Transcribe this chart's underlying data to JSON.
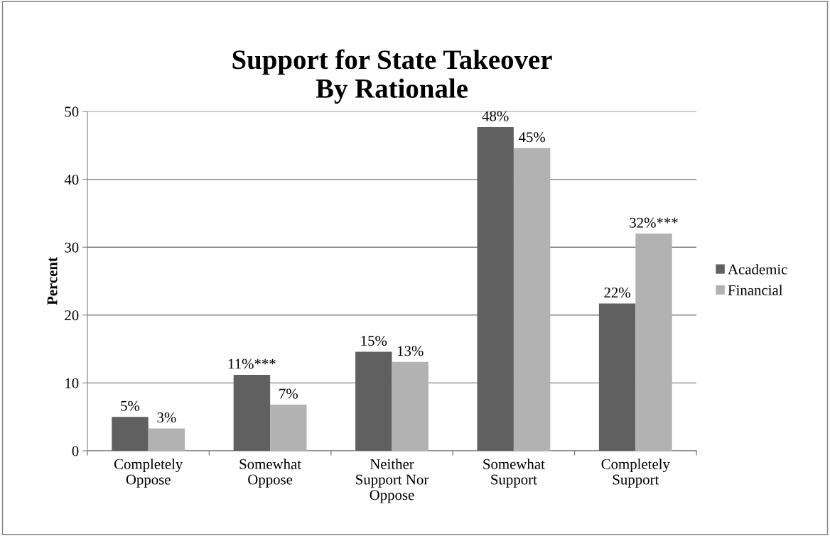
{
  "chart_data": {
    "type": "bar",
    "title": "Support for State Takeover\nBy Rationale",
    "ylabel": "Percent",
    "categories": [
      "Completely\nOppose",
      "Somewhat\nOppose",
      "Neither\nSupport Nor\nOppose",
      "Somewhat\nSupport",
      "Completely\nSupport"
    ],
    "series": [
      {
        "name": "Academic",
        "color": "#606060",
        "values": [
          5.0,
          11.2,
          14.6,
          47.7,
          21.7
        ],
        "value_labels": [
          "5%",
          "11%***",
          "15%",
          "48%",
          "22%"
        ]
      },
      {
        "name": "Financial",
        "color": "#b2b2b2",
        "values": [
          3.3,
          6.8,
          13.1,
          44.6,
          32.0
        ],
        "value_labels": [
          "3%",
          "7%",
          "13%",
          "45%",
          "32%***"
        ]
      }
    ],
    "ylim": [
      0,
      50
    ],
    "yticks": [
      0,
      10,
      20,
      30,
      40,
      50
    ],
    "grid": "y",
    "legend": "right"
  }
}
